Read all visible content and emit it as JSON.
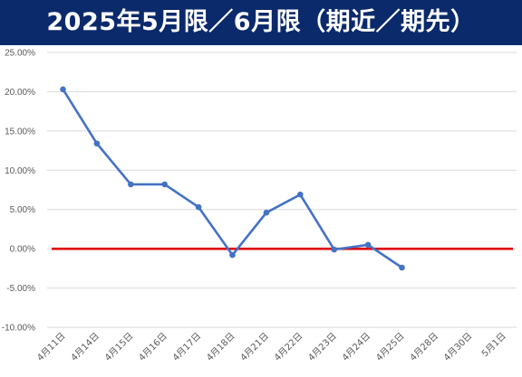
{
  "chart_data": {
    "type": "line",
    "title": "2025年5月限／6月限（期近／期先）",
    "categories": [
      "4月11日",
      "4月14日",
      "4月15日",
      "4月16日",
      "4月17日",
      "4月18日",
      "4月21日",
      "4月22日",
      "4月23日",
      "4月24日",
      "4月25日",
      "4月28日",
      "4月30日",
      "5月1日"
    ],
    "series": [
      {
        "values": [
          20.3,
          13.4,
          8.2,
          8.2,
          5.3,
          -0.8,
          4.6,
          6.9,
          -0.1,
          0.5,
          -2.4,
          null,
          null,
          null
        ],
        "color": "#4472c4"
      }
    ],
    "reference_line": {
      "y": 0,
      "color": "#e00000"
    },
    "yticks": [
      "25.00%",
      "20.00%",
      "15.00%",
      "10.00%",
      "5.00%",
      "0.00%",
      "-5.00%",
      "-10.00%"
    ],
    "ylim": [
      -10,
      25
    ],
    "grid": true,
    "colors": {
      "header_bg": "#0b2a6b",
      "header_text": "#ffffff",
      "gridline": "#d9d9d9"
    }
  }
}
